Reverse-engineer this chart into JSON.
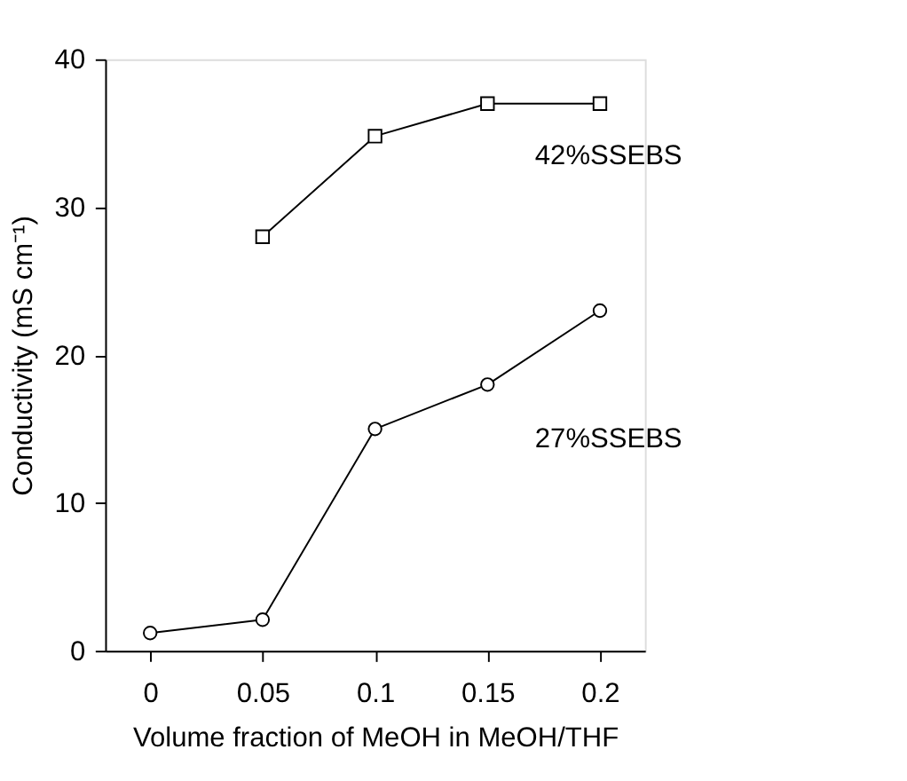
{
  "chart_data": {
    "type": "line",
    "xlabel": "Volume fraction of MeOH in MeOH/THF",
    "ylabel": "Conductivity (mS cm⁻¹)",
    "xlim": [
      -0.02,
      0.22
    ],
    "xticks": [
      0,
      0.05,
      0.1,
      0.15,
      0.2
    ],
    "ylim": [
      0,
      40
    ],
    "yticks": [
      0,
      10,
      20,
      30,
      40
    ],
    "grid": false,
    "line_style": "solid",
    "series": [
      {
        "name": "42%SSEBS",
        "color": "#000000",
        "marker": "square",
        "x": [
          0.05,
          0.1,
          0.15,
          0.2
        ],
        "values": [
          28,
          34.8,
          37,
          37
        ]
      },
      {
        "name": "27%SSEBS",
        "color": "#000000",
        "marker": "circle",
        "x": [
          0,
          0.05,
          0.1,
          0.15,
          0.2
        ],
        "values": [
          1.2,
          2.1,
          15,
          18,
          23
        ]
      }
    ]
  }
}
